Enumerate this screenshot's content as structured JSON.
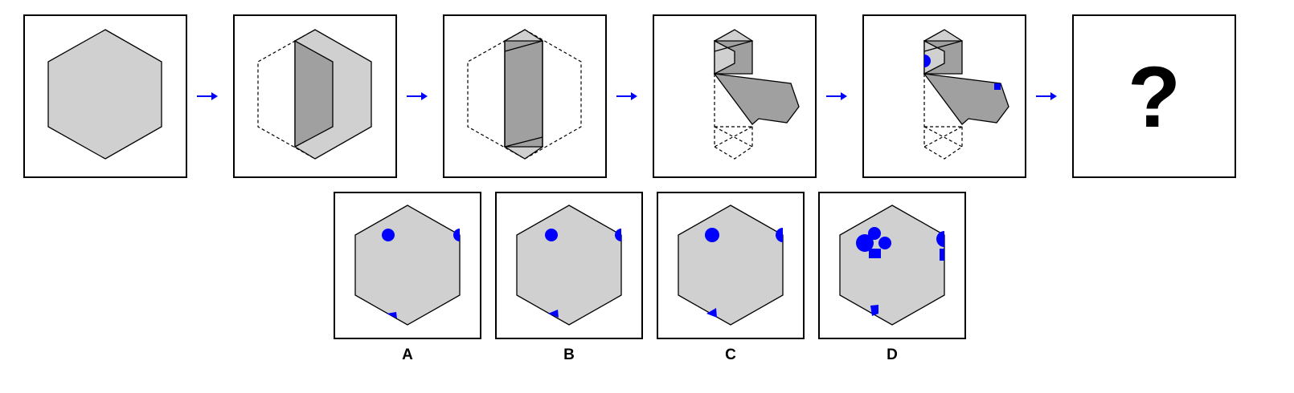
{
  "sequence": {
    "question_mark": "?"
  },
  "options": [
    {
      "label": "A"
    },
    {
      "label": "B"
    },
    {
      "label": "C"
    },
    {
      "label": "D"
    }
  ],
  "colors": {
    "shape_fill": "#d0d0d0",
    "shaded_fill": "#a0a0a0",
    "marker": "#0000ff",
    "arrow": "#0000ff",
    "outline": "#000000"
  },
  "icons": [
    "right-arrow-icon",
    "hexagon-shape",
    "circle-marker",
    "square-marker"
  ]
}
